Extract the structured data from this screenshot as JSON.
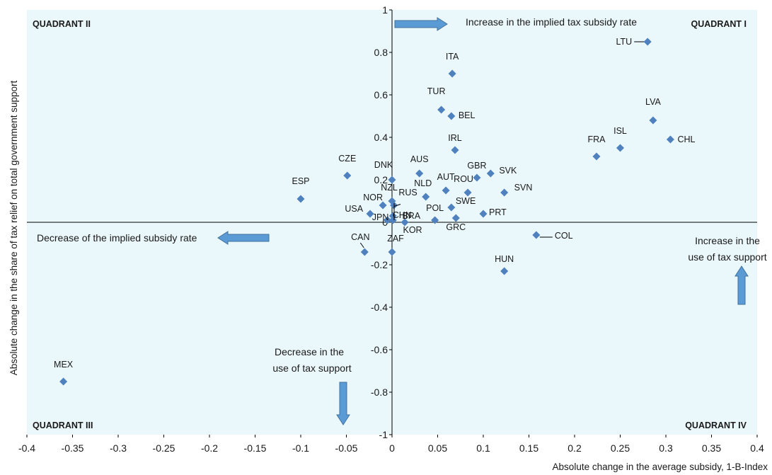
{
  "chart_data": {
    "type": "scatter",
    "title": "",
    "xlabel": "Absolute change in the average subsidy, 1-B-Index",
    "ylabel": "Absolute change in the share of tax relief on total government support",
    "xlim": [
      -0.4,
      0.4
    ],
    "ylim": [
      -1,
      1
    ],
    "x_ticks": [
      "-0.4",
      "-0.35",
      "-0.3",
      "-0.25",
      "-0.2",
      "-0.15",
      "-0.1",
      "-0.05",
      "0",
      "0.05",
      "0.1",
      "0.15",
      "0.2",
      "0.25",
      "0.3",
      "0.35",
      "0.4"
    ],
    "y_ticks": [
      "1",
      "0.8",
      "0.6",
      "0.4",
      "0.2",
      "0",
      "-0.2",
      "-0.4",
      "-0.6",
      "-0.8",
      "-1"
    ],
    "grid": false,
    "marker_color": "#4e81bd",
    "background_color": "#eaf7fb",
    "points": [
      {
        "label": "LTU",
        "x": 0.28,
        "y": 0.85
      },
      {
        "label": "ITA",
        "x": 0.066,
        "y": 0.7
      },
      {
        "label": "TUR",
        "x": 0.054,
        "y": 0.53
      },
      {
        "label": "BEL",
        "x": 0.065,
        "y": 0.5
      },
      {
        "label": "LVA",
        "x": 0.286,
        "y": 0.48
      },
      {
        "label": "CHL",
        "x": 0.305,
        "y": 0.39
      },
      {
        "label": "IRL",
        "x": 0.069,
        "y": 0.34
      },
      {
        "label": "ISL",
        "x": 0.25,
        "y": 0.35
      },
      {
        "label": "FRA",
        "x": 0.224,
        "y": 0.31
      },
      {
        "label": "CZE",
        "x": -0.049,
        "y": 0.22
      },
      {
        "label": "AUS",
        "x": 0.03,
        "y": 0.23
      },
      {
        "label": "SVK",
        "x": 0.108,
        "y": 0.23
      },
      {
        "label": "GBR",
        "x": 0.093,
        "y": 0.21
      },
      {
        "label": "DNK",
        "x": 0.0,
        "y": 0.2
      },
      {
        "label": "ESP",
        "x": -0.1,
        "y": 0.11
      },
      {
        "label": "NLD",
        "x": 0.037,
        "y": 0.12
      },
      {
        "label": "AUT",
        "x": 0.059,
        "y": 0.15
      },
      {
        "label": "ROU",
        "x": 0.083,
        "y": 0.14
      },
      {
        "label": "SVN",
        "x": 0.123,
        "y": 0.14
      },
      {
        "label": "NOR",
        "x": -0.01,
        "y": 0.08
      },
      {
        "label": "NZL",
        "x": 0.0,
        "y": 0.1
      },
      {
        "label": "RUS",
        "x": 0.002,
        "y": 0.08
      },
      {
        "label": "SWE",
        "x": 0.065,
        "y": 0.07
      },
      {
        "label": "USA",
        "x": -0.024,
        "y": 0.04
      },
      {
        "label": "BRA",
        "x": 0.001,
        "y": 0.03
      },
      {
        "label": "PRT",
        "x": 0.1,
        "y": 0.04
      },
      {
        "label": "JPN",
        "x": -0.005,
        "y": 0.01
      },
      {
        "label": "CHN",
        "x": 0.001,
        "y": 0.01
      },
      {
        "label": "GRC",
        "x": 0.07,
        "y": 0.02
      },
      {
        "label": "POL",
        "x": 0.047,
        "y": 0.01
      },
      {
        "label": "KOR",
        "x": 0.014,
        "y": 0.0
      },
      {
        "label": "COL",
        "x": 0.158,
        "y": -0.06
      },
      {
        "label": "CAN",
        "x": -0.03,
        "y": -0.14
      },
      {
        "label": "ZAF",
        "x": 0.0,
        "y": -0.14
      },
      {
        "label": "HUN",
        "x": 0.123,
        "y": -0.23
      },
      {
        "label": "MEX",
        "x": -0.36,
        "y": -0.75
      }
    ],
    "quadrant_labels": {
      "q1": "QUADRANT   I",
      "q2": "QUADRANT   II",
      "q3": "QUADRANT   III",
      "q4": "QUADRANT   IV"
    },
    "annotations": {
      "increase_rate": "Increase in the implied tax subsidy rate",
      "decrease_rate": "Decrease of the implied subsidy rate",
      "increase_use_line1": "Increase in the",
      "increase_use_line2": "use of tax support",
      "decrease_use_line1": "Decrease in the",
      "decrease_use_line2": "use of tax support"
    }
  }
}
